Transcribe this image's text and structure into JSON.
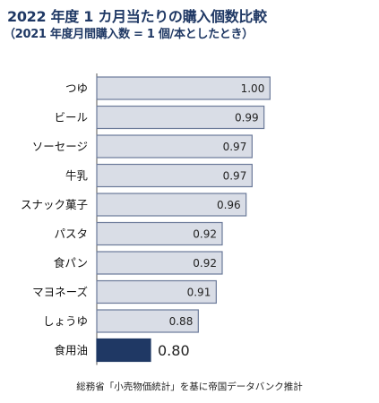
{
  "title": "2022 年度 1 カ月当たりの購入個数比較",
  "subtitle": "（2021 年度月間購入数 = 1 個/本としたとき）",
  "source": "総務省「小売物価統計」を基に帝国データバンク推計",
  "colors": {
    "bar_fill": "#d9dde6",
    "bar_stroke": "#6b7a99",
    "highlight_fill": "#1f3864",
    "axis": "#555555",
    "text": "#1f3864"
  },
  "chart_data": {
    "type": "bar",
    "orientation": "horizontal",
    "categories": [
      "つゆ",
      "ビール",
      "ソーセージ",
      "牛乳",
      "スナック菓子",
      "パスタ",
      "食パン",
      "マヨネーズ",
      "しょうゆ",
      "食用油"
    ],
    "values": [
      1.0,
      0.99,
      0.97,
      0.97,
      0.96,
      0.92,
      0.92,
      0.91,
      0.88,
      0.8
    ],
    "value_labels": [
      "1.00",
      "0.99",
      "0.97",
      "0.97",
      "0.96",
      "0.92",
      "0.92",
      "0.91",
      "0.88",
      "0.80"
    ],
    "highlight_category": "食用油",
    "xlim": [
      0.71,
      1.025
    ],
    "title": "2022 年度 1 カ月当たりの購入個数比較",
    "xlabel": "",
    "ylabel": "",
    "grid": false,
    "legend": "none"
  }
}
